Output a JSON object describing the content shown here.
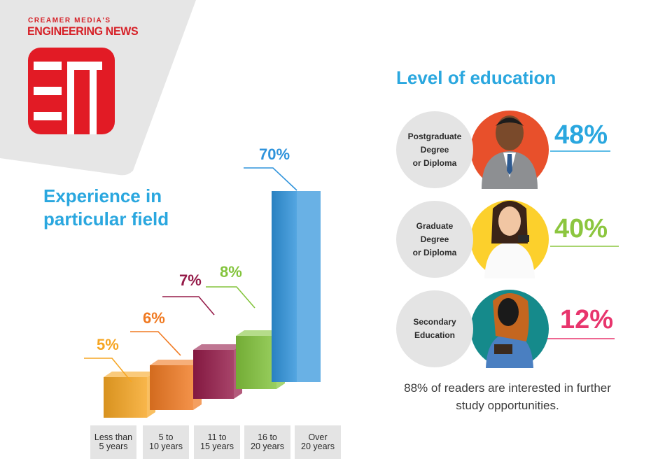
{
  "brand": {
    "top_line": "CREAMER MEDIA'S",
    "main_line": "ENGINEERING NEWS",
    "logo_icon": "en-logo-icon"
  },
  "experience": {
    "title": "Experience in particular field"
  },
  "chart_data": [
    {
      "type": "bar",
      "title": "Experience in particular field",
      "categories": [
        "Less than\n5 years",
        "5 to\n10 years",
        "11 to\n15 years",
        "16 to\n20 years",
        "Over\n20 years"
      ],
      "values": [
        5,
        6,
        7,
        8,
        70
      ],
      "value_labels": [
        "5%",
        "6%",
        "7%",
        "8%",
        "70%"
      ],
      "colors": [
        "#f6a623",
        "#f07a22",
        "#951b49",
        "#83c43c",
        "#2f93db"
      ],
      "xlabel": "",
      "ylabel": "",
      "grid": false
    },
    {
      "type": "table",
      "title": "Level of education",
      "categories": [
        "Postgraduate\nDegree\nor Diploma",
        "Graduate\nDegree\nor Diploma",
        "Secondary\nEducation"
      ],
      "values": [
        48,
        40,
        12
      ],
      "value_labels": [
        "48%",
        "40%",
        "12%"
      ],
      "colors": [
        "#2aa7df",
        "#8cc63f",
        "#e8356d"
      ],
      "circle_colors": [
        "#e8502b",
        "#fcd02c",
        "#158a8b"
      ]
    }
  ],
  "education": {
    "title": "Level of education",
    "footnote": "88% of readers are interested in further study opportunities."
  },
  "colors": {
    "title_blue": "#2aa7df",
    "brand_red": "#d61f26",
    "label_grey": "#e4e4e4"
  }
}
